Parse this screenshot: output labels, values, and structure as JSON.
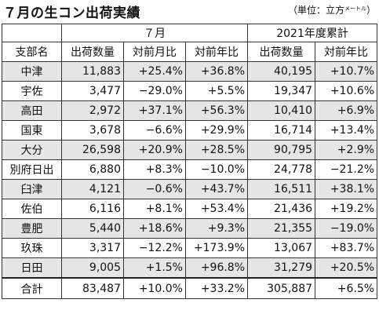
{
  "title": "７月の生コン出荷実績",
  "unit": {
    "prefix": "（単位：立方",
    "small": "メートル",
    "suffix": "）"
  },
  "groups": {
    "month": "７月",
    "ytd": "2021年度累計"
  },
  "columns": [
    "支部名",
    "出荷数量",
    "対前月比",
    "対前年比",
    "出荷数量",
    "対前年比"
  ],
  "rows": [
    [
      "中津",
      "11,883",
      "+25.4%",
      "+36.8%",
      "40,195",
      "+10.7%"
    ],
    [
      "宇佐",
      "3,477",
      "−29.0%",
      "+5.5%",
      "19,347",
      "+10.6%"
    ],
    [
      "高田",
      "2,972",
      "+37.1%",
      "+56.3%",
      "10,410",
      "+6.9%"
    ],
    [
      "国東",
      "3,678",
      "−6.6%",
      "+29.9%",
      "16,714",
      "+13.4%"
    ],
    [
      "大分",
      "26,598",
      "+20.9%",
      "+28.5%",
      "90,795",
      "+2.9%"
    ],
    [
      "別府日出",
      "6,880",
      "+8.3%",
      "−10.0%",
      "24,778",
      "−21.2%"
    ],
    [
      "臼津",
      "4,121",
      "−0.6%",
      "+43.7%",
      "16,511",
      "+38.1%"
    ],
    [
      "佐伯",
      "6,116",
      "+8.1%",
      "+53.4%",
      "21,436",
      "+19.2%"
    ],
    [
      "豊肥",
      "5,440",
      "+18.6%",
      "+9.3%",
      "21,355",
      "−19.0%"
    ],
    [
      "玖珠",
      "3,317",
      "−12.2%",
      "+173.9%",
      "13,067",
      "+83.7%"
    ],
    [
      "日田",
      "9,005",
      "+1.5%",
      "+96.8%",
      "31,279",
      "+20.5%"
    ]
  ],
  "total": [
    "合計",
    "83,487",
    "+10.0%",
    "+33.2%",
    "305,887",
    "+6.5%"
  ]
}
